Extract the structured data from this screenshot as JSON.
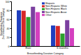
{
  "chart_data": {
    "type": "bar",
    "x_label": "Breastfeeding Duration Category",
    "y_label": [
      "Breastfeeding Prevalence",
      "(% of Infants per Ethnic Category)"
    ],
    "categories": [
      "Ever",
      "6 months"
    ],
    "series": [
      {
        "name": "Hispanic",
        "color": "#1f3fbf",
        "values": [
          80,
          46
        ]
      },
      {
        "name": "Non-Hispanic White",
        "color": "#d62728",
        "values": [
          79,
          45
        ]
      },
      {
        "name": "Non-Hispanic Black",
        "color": "#2ca02c",
        "values": [
          65,
          28
        ]
      },
      {
        "name": "Non-Hispanic Asian",
        "color": "#7b3fa0",
        "values": [
          88,
          58
        ]
      },
      {
        "name": "Other",
        "color": "#d43fbf",
        "values": [
          76,
          40
        ]
      }
    ],
    "ylim": [
      0,
      100
    ],
    "yticks": [
      0,
      20,
      40,
      60,
      80,
      100
    ],
    "legend": "upper right"
  }
}
